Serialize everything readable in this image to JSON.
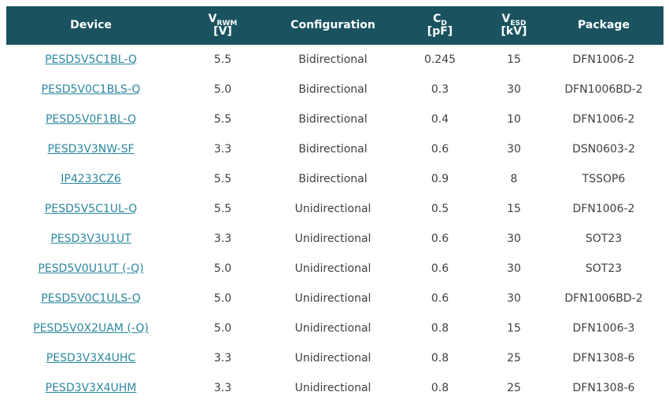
{
  "table": {
    "columns": [
      {
        "main": "Device",
        "sub": "",
        "unit": ""
      },
      {
        "main": "V",
        "sub": "RWM",
        "unit": "[V]"
      },
      {
        "main": "Configuration",
        "sub": "",
        "unit": ""
      },
      {
        "main": "C",
        "sub": "D",
        "unit": "[pF]"
      },
      {
        "main": "V",
        "sub": "ESD",
        "unit": "[kV]"
      },
      {
        "main": "Package",
        "sub": "",
        "unit": ""
      }
    ],
    "rows": [
      {
        "device": "PESD5V5C1BL-Q",
        "vrwm": "5.5",
        "configuration": "Bidirectional",
        "cd": "0.245",
        "vesd": "15",
        "package": "DFN1006-2"
      },
      {
        "device": "PESD5V0C1BLS-Q",
        "vrwm": "5.0",
        "configuration": "Bidirectional",
        "cd": "0.3",
        "vesd": "30",
        "package": "DFN1006BD-2"
      },
      {
        "device": "PESD5V0F1BL-Q",
        "vrwm": "5.5",
        "configuration": "Bidirectional",
        "cd": "0.4",
        "vesd": "10",
        "package": "DFN1006-2"
      },
      {
        "device": "PESD3V3NW-SF",
        "vrwm": "3.3",
        "configuration": "Bidirectional",
        "cd": "0.6",
        "vesd": "30",
        "package": "DSN0603-2"
      },
      {
        "device": "IP4233CZ6",
        "vrwm": "5.5",
        "configuration": "Bidirectional",
        "cd": "0.9",
        "vesd": "8",
        "package": "TSSOP6"
      },
      {
        "device": "PESD5V5C1UL-Q",
        "vrwm": "5.5",
        "configuration": "Unidirectional",
        "cd": "0.5",
        "vesd": "15",
        "package": "DFN1006-2"
      },
      {
        "device": "PESD3V3U1UT",
        "vrwm": "3.3",
        "configuration": "Unidirectional",
        "cd": "0.6",
        "vesd": "30",
        "package": "SOT23"
      },
      {
        "device": "PESD5V0U1UT (-Q)",
        "vrwm": "5.0",
        "configuration": "Unidirectional",
        "cd": "0.6",
        "vesd": "30",
        "package": "SOT23"
      },
      {
        "device": "PESD5V0C1ULS-Q",
        "vrwm": "5.0",
        "configuration": "Unidirectional",
        "cd": "0.6",
        "vesd": "30",
        "package": "DFN1006BD-2"
      },
      {
        "device": "PESD5V0X2UAM (-Q)",
        "vrwm": "5.0",
        "configuration": "Unidirectional",
        "cd": "0.8",
        "vesd": "15",
        "package": "DFN1006-3"
      },
      {
        "device": "PESD3V3X4UHC",
        "vrwm": "3.3",
        "configuration": "Unidirectional",
        "cd": "0.8",
        "vesd": "25",
        "package": "DFN1308-6"
      },
      {
        "device": "PESD3V3X4UHM",
        "vrwm": "3.3",
        "configuration": "Unidirectional",
        "cd": "0.8",
        "vesd": "25",
        "package": "DFN1308-6"
      }
    ],
    "colors": {
      "header_bg": "#1A535F",
      "header_text": "#FFFFFF",
      "link": "#2C87A0",
      "body_text": "#404040"
    }
  }
}
